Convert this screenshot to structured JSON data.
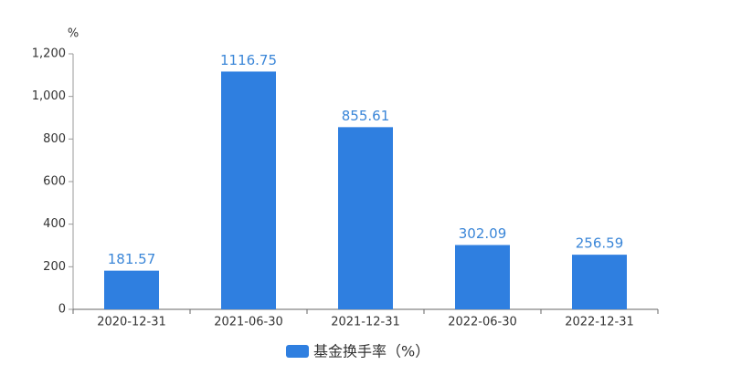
{
  "chart_data": {
    "type": "bar",
    "y_label": "%",
    "categories": [
      "2020-12-31",
      "2021-06-30",
      "2021-12-31",
      "2022-06-30",
      "2022-12-31"
    ],
    "series": [
      {
        "name": "基金换手率（%）",
        "color": "#2f7fe0",
        "values": [
          181.57,
          1116.75,
          855.61,
          302.09,
          256.59
        ]
      }
    ],
    "ylim": [
      0,
      1200
    ],
    "yticks": [
      0,
      200,
      400,
      600,
      800,
      {
        "value": 1000,
        "label": "1,000"
      },
      {
        "value": 1200,
        "label": "1,200"
      }
    ],
    "grid": false,
    "legend": "bottom"
  }
}
